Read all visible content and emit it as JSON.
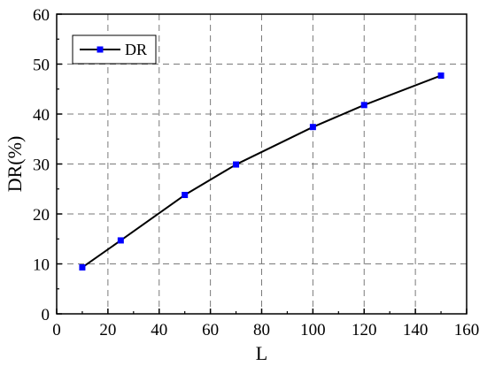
{
  "chart_data": {
    "type": "line",
    "xlabel": "L",
    "ylabel": "DR(%)",
    "xlim": [
      0,
      160
    ],
    "ylim": [
      0,
      60
    ],
    "x_ticks": [
      0,
      20,
      40,
      60,
      80,
      100,
      120,
      140,
      160
    ],
    "y_ticks": [
      0,
      10,
      20,
      30,
      40,
      50,
      60
    ],
    "grid": true,
    "legend_position": "top-left",
    "series": [
      {
        "name": "DR",
        "line_color": "#000000",
        "marker": "square",
        "marker_color": "#0000ff",
        "x": [
          10,
          25,
          50,
          70,
          100,
          120,
          150
        ],
        "y": [
          9.3,
          14.7,
          23.8,
          29.9,
          37.4,
          41.8,
          47.7
        ]
      }
    ]
  }
}
